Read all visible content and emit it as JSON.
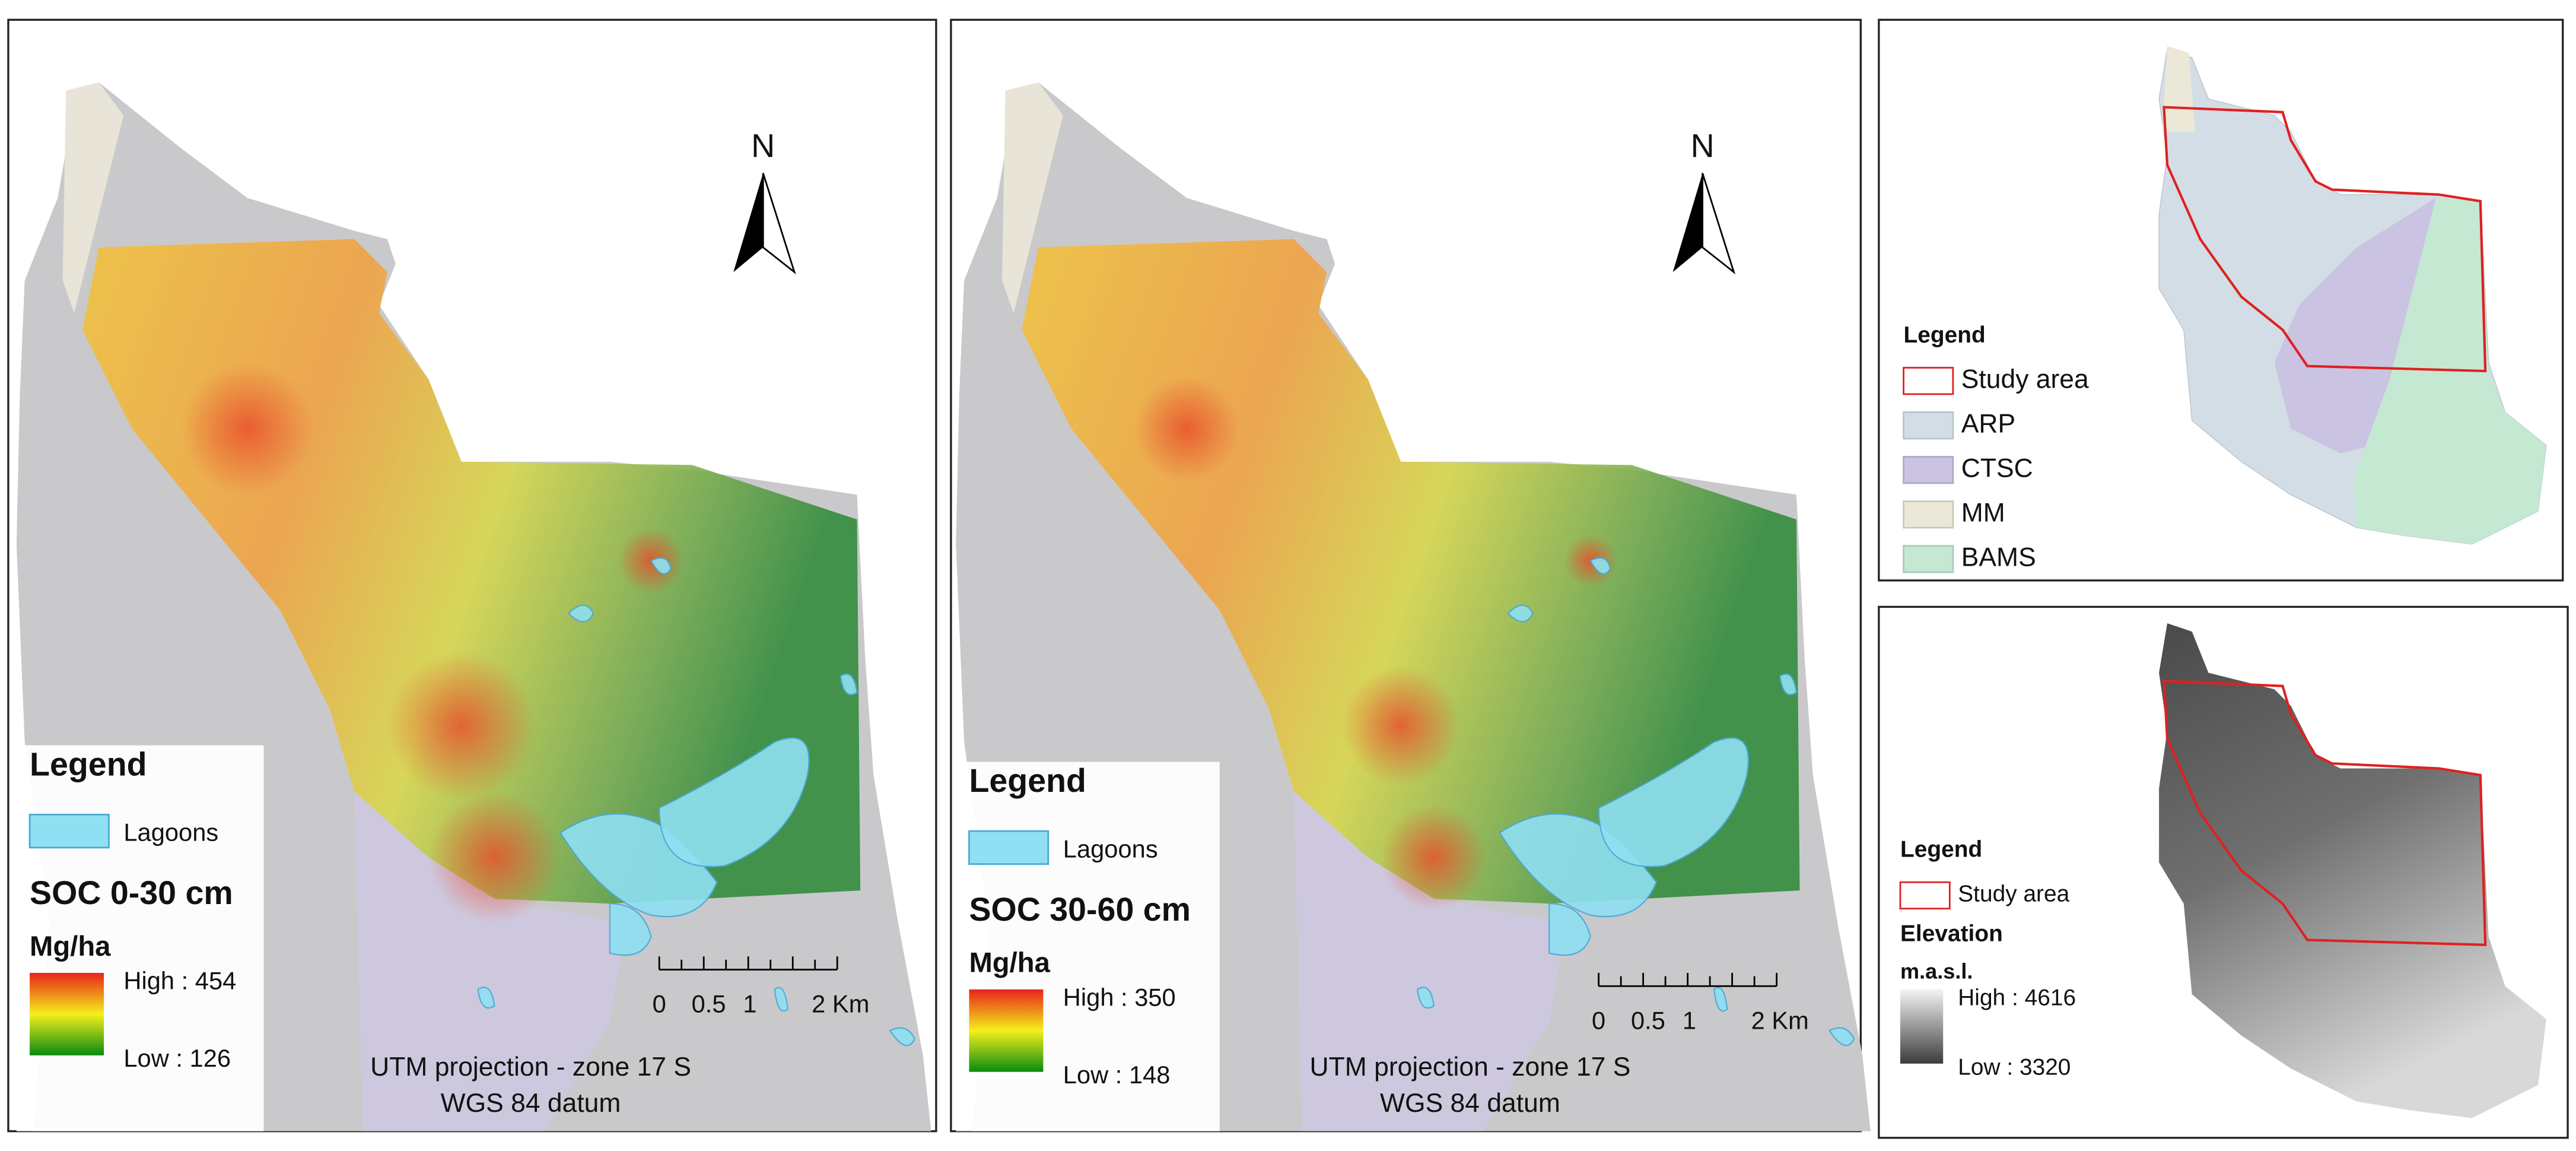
{
  "maps": [
    {
      "north": "N",
      "legend": {
        "title": "Legend",
        "items": [
          "Lagoons"
        ],
        "variable": "SOC 0-30 cm",
        "unit": "Mg/ha",
        "high": "High : 454",
        "low": "Low : 126"
      },
      "scale_bar": [
        "0",
        "0.5",
        "1",
        "2 Km"
      ],
      "projection": "UTM projection - zone 17 S",
      "datum": "WGS 84 datum"
    },
    {
      "north": "N",
      "legend": {
        "title": "Legend",
        "items": [
          "Lagoons"
        ],
        "variable": "SOC 30-60 cm",
        "unit": "Mg/ha",
        "high": "High : 350",
        "low": "Low : 148"
      },
      "scale_bar": [
        "0",
        "0.5",
        "1",
        "2 Km"
      ],
      "projection": "UTM projection - zone 17 S",
      "datum": "WGS 84 datum"
    }
  ],
  "context_map": {
    "legend_title": "Legend",
    "items": [
      "Study area",
      "ARP",
      "CTSC",
      "MM",
      "BAMS"
    ]
  },
  "elevation_map": {
    "legend_title": "Legend",
    "items": [
      "Study area"
    ],
    "variable": "Elevation",
    "unit": "m.a.s.l.",
    "high": "High : 4616",
    "low": "Low : 3320"
  }
}
